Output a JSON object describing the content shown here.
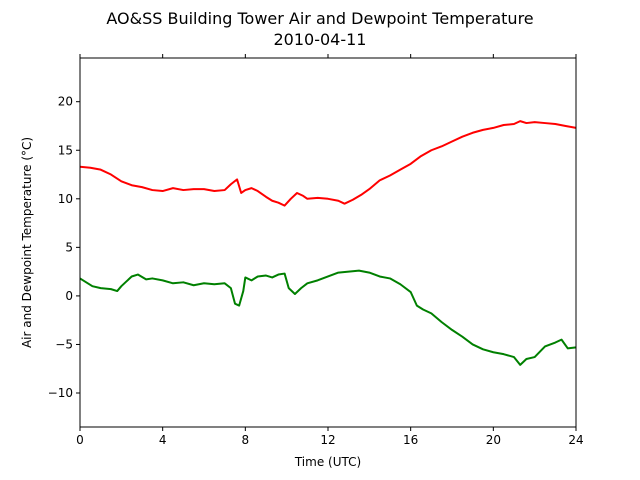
{
  "chart_data": {
    "type": "line",
    "title": "AO&SS Building Tower Air and Dewpoint Temperature",
    "subtitle": "2010-04-11",
    "xlabel": "Time (UTC)",
    "ylabel": "Air and Dewpoint Temperature (°C)",
    "xlim": [
      0,
      24
    ],
    "ylim": [
      -13.5,
      24.5
    ],
    "xticks": [
      0,
      4,
      8,
      12,
      16,
      20,
      24
    ],
    "yticks": [
      -10,
      -5,
      0,
      5,
      10,
      15,
      20
    ],
    "grid": false,
    "series": [
      {
        "color": "#ff0000",
        "x": [
          0,
          0.5,
          1,
          1.5,
          2,
          2.5,
          3,
          3.5,
          4,
          4.5,
          5,
          5.5,
          6,
          6.5,
          7,
          7.3,
          7.6,
          7.8,
          8,
          8.3,
          8.6,
          9,
          9.3,
          9.6,
          9.9,
          10.2,
          10.5,
          10.8,
          11,
          11.5,
          12,
          12.5,
          12.8,
          13.2,
          13.6,
          14,
          14.5,
          15,
          15.5,
          16,
          16.5,
          17,
          17.5,
          18,
          18.5,
          19,
          19.5,
          20,
          20.5,
          21,
          21.3,
          21.6,
          22,
          22.5,
          23,
          23.5,
          24
        ],
        "values": [
          13.3,
          13.2,
          13.0,
          12.5,
          11.8,
          11.4,
          11.2,
          10.9,
          10.8,
          11.1,
          10.9,
          11.0,
          11.0,
          10.8,
          10.9,
          11.5,
          12.0,
          10.6,
          10.9,
          11.1,
          10.8,
          10.2,
          9.8,
          9.6,
          9.3,
          10.0,
          10.6,
          10.3,
          10.0,
          10.1,
          10.0,
          9.8,
          9.5,
          9.9,
          10.4,
          11.0,
          11.9,
          12.4,
          13.0,
          13.6,
          14.4,
          15.0,
          15.4,
          15.9,
          16.4,
          16.8,
          17.1,
          17.3,
          17.6,
          17.7,
          18.0,
          17.8,
          17.9,
          17.8,
          17.7,
          17.5,
          17.3
        ]
      },
      {
        "color": "#008000",
        "x": [
          0,
          0.3,
          0.6,
          1,
          1.5,
          1.8,
          2,
          2.5,
          2.8,
          3.2,
          3.5,
          4,
          4.5,
          5,
          5.5,
          6,
          6.5,
          7,
          7.3,
          7.5,
          7.7,
          7.9,
          8,
          8.3,
          8.6,
          9,
          9.3,
          9.6,
          9.9,
          10.1,
          10.4,
          10.7,
          11,
          11.5,
          12,
          12.5,
          13,
          13.5,
          14,
          14.5,
          15,
          15.5,
          16,
          16.3,
          16.6,
          17,
          17.5,
          18,
          18.5,
          19,
          19.5,
          20,
          20.5,
          21,
          21.3,
          21.6,
          22,
          22.5,
          23,
          23.3,
          23.6,
          24
        ],
        "values": [
          1.8,
          1.4,
          1.0,
          0.8,
          0.7,
          0.5,
          1.0,
          2.0,
          2.2,
          1.7,
          1.8,
          1.6,
          1.3,
          1.4,
          1.1,
          1.3,
          1.2,
          1.3,
          0.8,
          -0.8,
          -1.0,
          0.5,
          1.9,
          1.6,
          2.0,
          2.1,
          1.9,
          2.2,
          2.3,
          0.8,
          0.2,
          0.8,
          1.3,
          1.6,
          2.0,
          2.4,
          2.5,
          2.6,
          2.4,
          2.0,
          1.8,
          1.2,
          0.4,
          -1.0,
          -1.4,
          -1.8,
          -2.7,
          -3.5,
          -4.2,
          -5.0,
          -5.5,
          -5.8,
          -6.0,
          -6.3,
          -7.1,
          -6.5,
          -6.3,
          -5.2,
          -4.8,
          -4.5,
          -5.4,
          -5.3
        ]
      }
    ]
  }
}
